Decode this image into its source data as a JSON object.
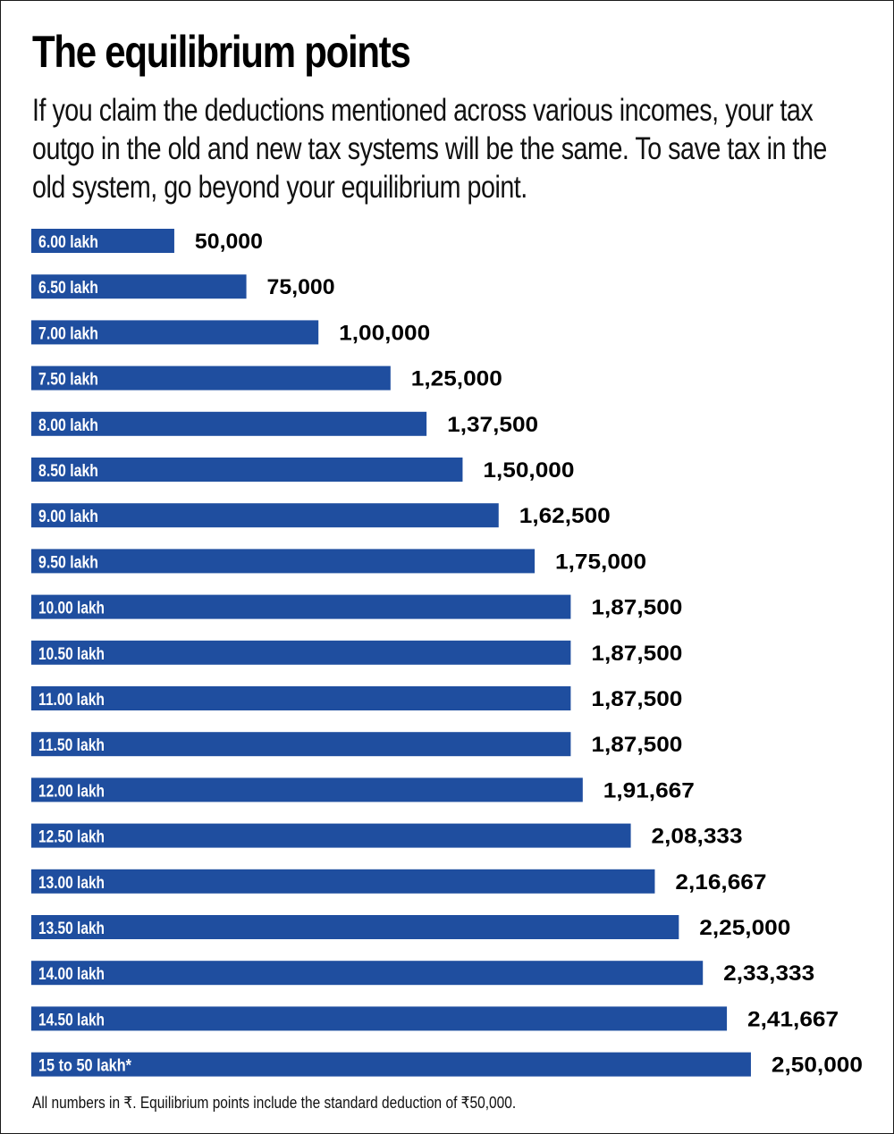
{
  "header": {
    "title": "The equilibrium points",
    "subtitle": "If you claim the deductions mentioned across various incomes, your tax outgo in the old and new tax systems will be the same. To save tax in the old system, go beyond your equilibrium point."
  },
  "footnote": "All numbers in ₹. Equilibrium points include the standard deduction of ₹50,000.",
  "colors": {
    "bar": "#1f4e9f",
    "bar_text": "#ffffff",
    "value_text": "#000000",
    "border": "#1a1a1a"
  },
  "chart_data": {
    "type": "bar",
    "orientation": "horizontal",
    "title": "The equilibrium points",
    "xlabel": "",
    "ylabel": "",
    "unit": "₹",
    "xlim": [
      0,
      250000
    ],
    "grid": false,
    "categories": [
      "6.00 lakh",
      "6.50 lakh",
      "7.00 lakh",
      "7.50 lakh",
      "8.00 lakh",
      "8.50 lakh",
      "9.00 lakh",
      "9.50 lakh",
      "10.00 lakh",
      "10.50 lakh",
      "11.00 lakh",
      "11.50 lakh",
      "12.00 lakh",
      "12.50 lakh",
      "13.00 lakh",
      "13.50 lakh",
      "14.00 lakh",
      "14.50 lakh",
      "15 to 50 lakh*"
    ],
    "values": [
      50000,
      75000,
      100000,
      125000,
      137500,
      150000,
      162500,
      175000,
      187500,
      187500,
      187500,
      187500,
      191667,
      208333,
      216667,
      225000,
      233333,
      241667,
      250000
    ],
    "value_labels": [
      "50,000",
      "75,000",
      "1,00,000",
      "1,25,000",
      "1,37,500",
      "1,50,000",
      "1,62,500",
      "1,75,000",
      "1,87,500",
      "1,87,500",
      "1,87,500",
      "1,87,500",
      "1,91,667",
      "2,08,333",
      "2,16,667",
      "2,25,000",
      "2,33,333",
      "2,41,667",
      "2,50,000"
    ]
  }
}
